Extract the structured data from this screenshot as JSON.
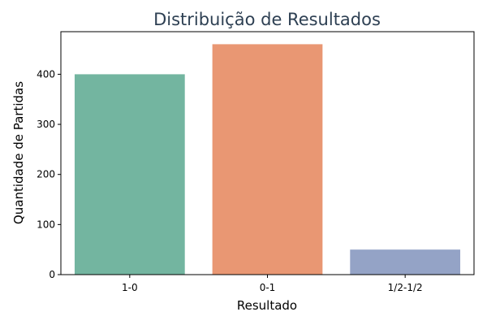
{
  "chart_data": {
    "type": "bar",
    "title": "Distribuição de Resultados",
    "xlabel": "Resultado",
    "ylabel": "Quantidade de Partidas",
    "categories": [
      "1-0",
      "0-1",
      "1/2-1/2"
    ],
    "values": [
      400,
      460,
      50
    ],
    "ylim": [
      0,
      485
    ],
    "yticks": [
      0,
      100,
      200,
      300,
      400
    ],
    "grid": false,
    "colors": [
      "#73b5a0",
      "#e99773",
      "#94a3c6"
    ],
    "title_color": "#2e4053"
  }
}
